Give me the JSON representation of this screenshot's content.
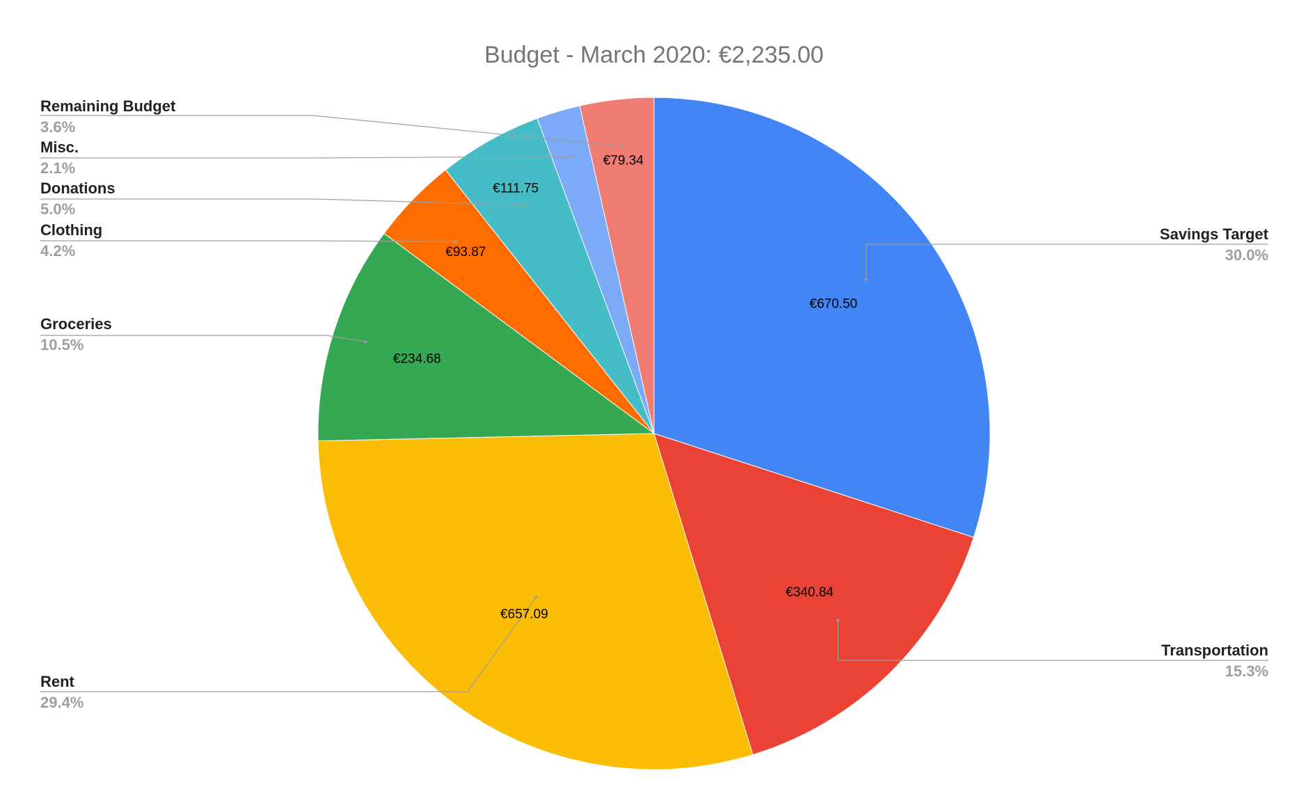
{
  "chart_data": {
    "type": "pie",
    "title": "Budget - March 2020: €2,235.00",
    "start_angle_deg": 0,
    "direction": "clockwise",
    "legend": "labels with leader lines",
    "slices": [
      {
        "name": "Savings Target",
        "value": 670.5,
        "value_label": "€670.50",
        "percent_label": "30.0%",
        "color": "#4285F4"
      },
      {
        "name": "Transportation",
        "value": 340.84,
        "value_label": "€340.84",
        "percent_label": "15.3%",
        "color": "#EA4335"
      },
      {
        "name": "Rent",
        "value": 657.09,
        "value_label": "€657.09",
        "percent_label": "29.4%",
        "color": "#FBBC04"
      },
      {
        "name": "Groceries",
        "value": 234.68,
        "value_label": "€234.68",
        "percent_label": "10.5%",
        "color": "#34A853"
      },
      {
        "name": "Clothing",
        "value": 93.87,
        "value_label": "€93.87",
        "percent_label": "4.2%",
        "color": "#FF6D01"
      },
      {
        "name": "Donations",
        "value": 111.75,
        "value_label": "€111.75",
        "percent_label": "5.0%",
        "color": "#46BDC6"
      },
      {
        "name": "Misc.",
        "value": 46.93,
        "value_label": "",
        "percent_label": "2.1%",
        "color": "#7BAAF7"
      },
      {
        "name": "Remaining Budget",
        "value": 79.34,
        "value_label": "€79.34",
        "percent_label": "3.6%",
        "color": "#F07B72"
      }
    ]
  }
}
